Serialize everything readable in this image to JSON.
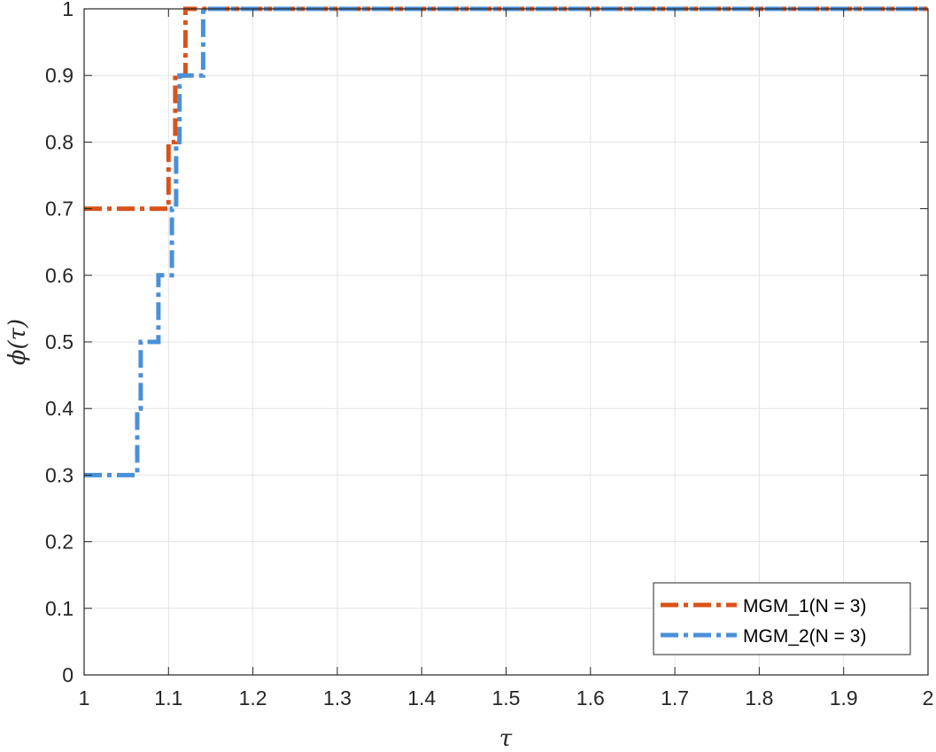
{
  "chart_data": {
    "type": "line",
    "step": true,
    "title": "",
    "xlabel": "τ",
    "ylabel": "ϕ(τ)",
    "xlim": [
      1,
      2
    ],
    "ylim": [
      0,
      1
    ],
    "grid": true,
    "legend_position": "bottom-right",
    "x_ticks": [
      "1",
      "1.1",
      "1.2",
      "1.3",
      "1.4",
      "1.5",
      "1.6",
      "1.7",
      "1.8",
      "1.9",
      "2"
    ],
    "y_ticks": [
      "0",
      "0.1",
      "0.2",
      "0.3",
      "0.4",
      "0.5",
      "0.6",
      "0.7",
      "0.8",
      "0.9",
      "1"
    ],
    "series": [
      {
        "name": "MGM_1(N = 3)",
        "color": "#D95319",
        "line_style": "dash-dot",
        "x": [
          1,
          1.1,
          1.1,
          1.108,
          1.108,
          1.12,
          1.12,
          2
        ],
        "y": [
          0.7,
          0.7,
          0.8,
          0.8,
          0.9,
          0.9,
          1.0,
          1.0
        ]
      },
      {
        "name": "MGM_2(N = 3)",
        "color": "#4A90D9",
        "line_style": "dash-dot",
        "x": [
          1,
          1.063,
          1.063,
          1.067,
          1.067,
          1.088,
          1.088,
          1.104,
          1.104,
          1.109,
          1.109,
          1.113,
          1.113,
          1.141,
          1.141,
          2
        ],
        "y": [
          0.3,
          0.3,
          0.4,
          0.4,
          0.5,
          0.5,
          0.6,
          0.6,
          0.7,
          0.7,
          0.8,
          0.8,
          0.9,
          0.9,
          1.0,
          1.0
        ]
      }
    ]
  }
}
